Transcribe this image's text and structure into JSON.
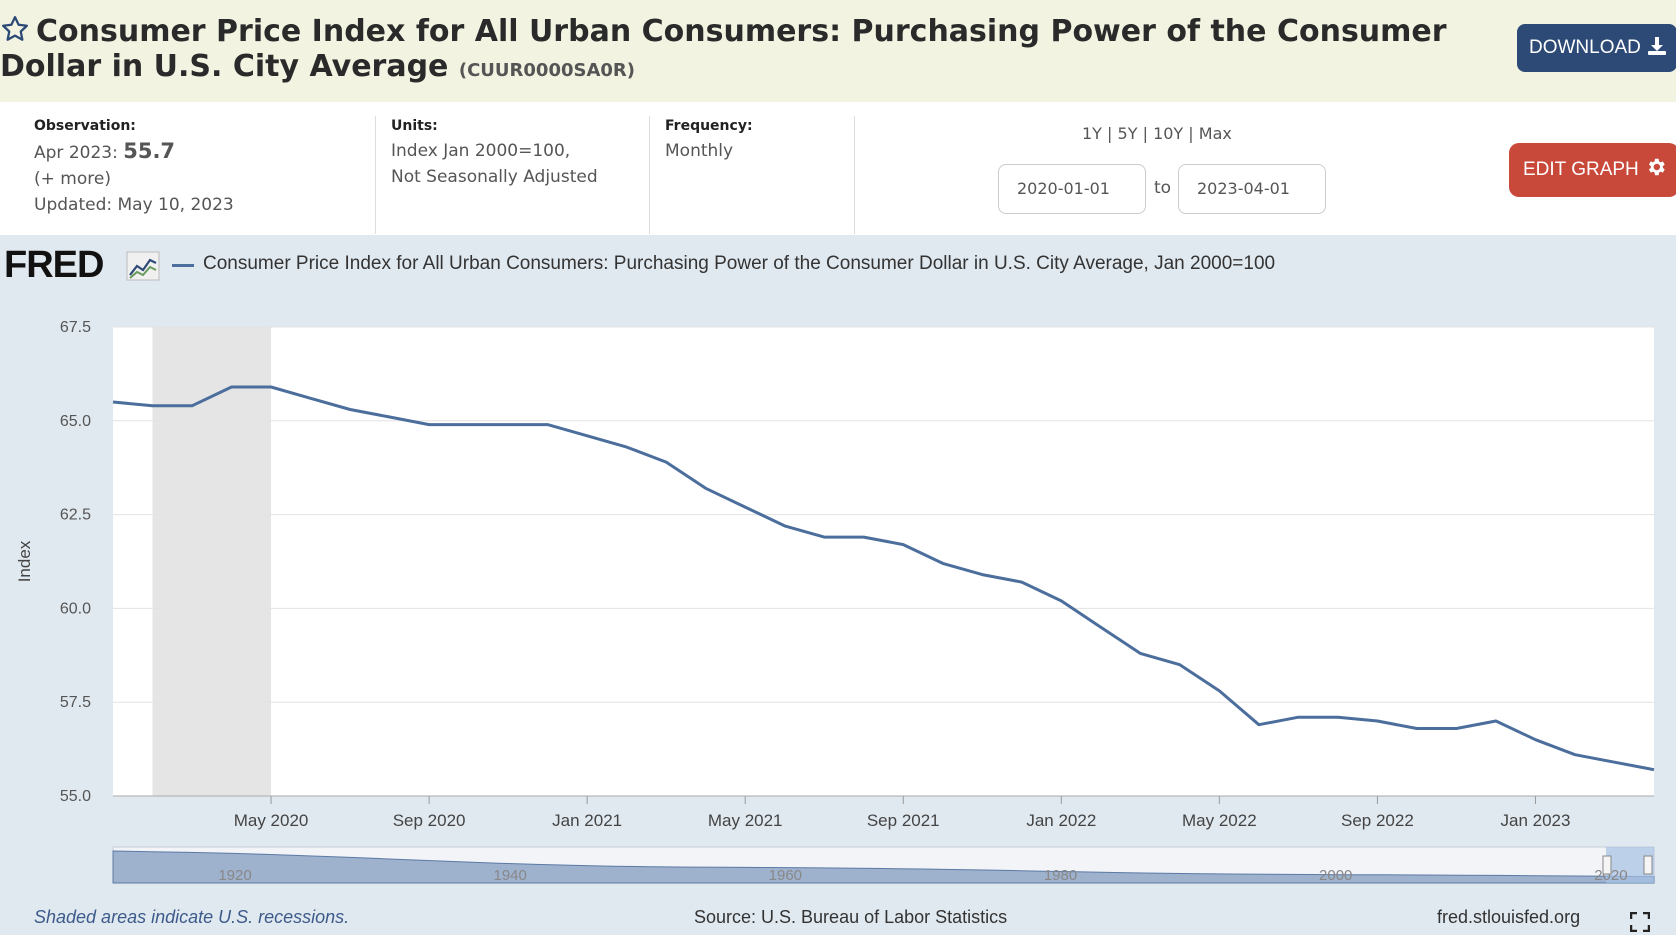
{
  "header": {
    "title": "Consumer Price Index for All Urban Consumers: Purchasing Power of the Consumer Dollar in U.S. City Average",
    "series_id": "(CUUR0000SA0R)",
    "download_label": "DOWNLOAD",
    "star_icon": "star-icon",
    "download_icon": "download-icon"
  },
  "meta": {
    "observation_label": "Observation:",
    "observation_date": "Apr 2023:",
    "observation_value": "55.7",
    "more_label": "(+ more)",
    "updated": "Updated: May 10, 2023",
    "units_label": "Units:",
    "units_line1": "Index Jan 2000=100,",
    "units_line2": "Not Seasonally Adjusted",
    "frequency_label": "Frequency:",
    "frequency_value": "Monthly"
  },
  "range": {
    "r1y": "1Y",
    "r5y": "5Y",
    "r10y": "10Y",
    "rmax": "Max",
    "sep": "|",
    "start": "2020-01-01",
    "to": "to",
    "end": "2023-04-01"
  },
  "edit_label": "EDIT GRAPH",
  "brand": "FRED",
  "footer": {
    "recession_note": "Shaded areas indicate U.S. recessions.",
    "source": "Source: U.S. Bureau of Labor Statistics",
    "site": "fred.stlouisfed.org"
  },
  "colors": {
    "line": "#4c6e9c",
    "recession": "#e5e5e5",
    "download": "#2d4a76",
    "edit": "#c8483a"
  },
  "chart_data": {
    "type": "line",
    "ylabel": "Index",
    "ylim": [
      55.0,
      67.5
    ],
    "yticks": [
      "55.0",
      "57.5",
      "60.0",
      "62.5",
      "65.0",
      "67.5"
    ],
    "xticks": [
      "May 2020",
      "Sep 2020",
      "Jan 2021",
      "May 2021",
      "Sep 2021",
      "Jan 2022",
      "May 2022",
      "Sep 2022",
      "Jan 2023"
    ],
    "xrange": [
      "2020-01",
      "2023-04"
    ],
    "recession": [
      "2020-02",
      "2020-04"
    ],
    "grid": true,
    "series": [
      {
        "name": "Consumer Price Index for All Urban Consumers: Purchasing Power of the Consumer Dollar in U.S. City Average, Jan 2000=100",
        "x": [
          "2020-01",
          "2020-02",
          "2020-03",
          "2020-04",
          "2020-05",
          "2020-06",
          "2020-07",
          "2020-08",
          "2020-09",
          "2020-10",
          "2020-11",
          "2020-12",
          "2021-01",
          "2021-02",
          "2021-03",
          "2021-04",
          "2021-05",
          "2021-06",
          "2021-07",
          "2021-08",
          "2021-09",
          "2021-10",
          "2021-11",
          "2021-12",
          "2022-01",
          "2022-02",
          "2022-03",
          "2022-04",
          "2022-05",
          "2022-06",
          "2022-07",
          "2022-08",
          "2022-09",
          "2022-10",
          "2022-11",
          "2022-12",
          "2023-01",
          "2023-02",
          "2023-03",
          "2023-04"
        ],
        "values": [
          65.5,
          65.4,
          65.4,
          65.9,
          65.9,
          65.6,
          65.3,
          65.1,
          64.9,
          64.9,
          64.9,
          64.9,
          64.6,
          64.3,
          63.9,
          63.2,
          62.7,
          62.2,
          61.9,
          61.9,
          61.7,
          61.2,
          60.9,
          60.7,
          60.2,
          59.5,
          58.8,
          58.5,
          57.8,
          56.9,
          57.1,
          57.1,
          57.0,
          56.8,
          56.8,
          57.0,
          56.5,
          56.1,
          55.9,
          55.7
        ]
      }
    ],
    "navigator_ticks": [
      "1920",
      "1940",
      "1960",
      "1980",
      "2000",
      "2020"
    ]
  }
}
